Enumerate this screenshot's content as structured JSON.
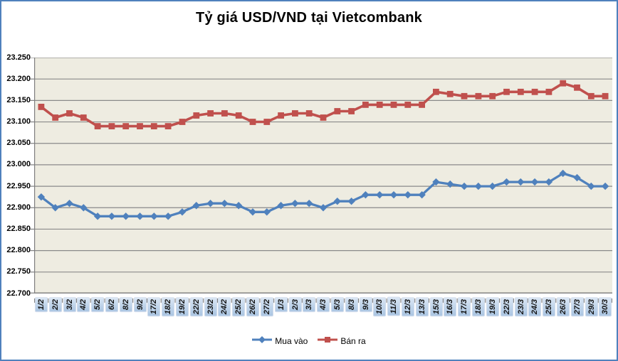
{
  "title": "Tỷ giá USD/VND tại Vietcombank",
  "chart_data": {
    "type": "line",
    "title": "Tỷ giá USD/VND tại Vietcombank",
    "xlabel": "",
    "ylabel": "",
    "categories": [
      "1/2",
      "2/2",
      "3/2",
      "4/2",
      "5/2",
      "6/2",
      "8/2",
      "9/2",
      "17/2",
      "18/2",
      "19/2",
      "22/2",
      "23/2",
      "24/2",
      "25/2",
      "26/2",
      "27/2",
      "1/3",
      "2/3",
      "3/3",
      "4/3",
      "5/3",
      "8/3",
      "9/3",
      "10/3",
      "11/3",
      "12/3",
      "13/3",
      "15/3",
      "16/3",
      "17/3",
      "18/3",
      "19/3",
      "22/3",
      "23/3",
      "24/3",
      "25/3",
      "26/3",
      "27/3",
      "29/3",
      "30/3"
    ],
    "series": [
      {
        "name": "Mua vào",
        "marker": "diamond",
        "color": "#4f81bd",
        "values": [
          22925,
          22900,
          22910,
          22900,
          22880,
          22880,
          22880,
          22880,
          22880,
          22880,
          22890,
          22905,
          22910,
          22910,
          22905,
          22890,
          22890,
          22905,
          22910,
          22910,
          22900,
          22915,
          22915,
          22930,
          22930,
          22930,
          22930,
          22930,
          22960,
          22955,
          22950,
          22950,
          22950,
          22960,
          22960,
          22960,
          22960,
          22980,
          22970,
          22950,
          22950
        ]
      },
      {
        "name": "Bán ra",
        "marker": "square",
        "color": "#c0504d",
        "values": [
          23135,
          23110,
          23120,
          23110,
          23090,
          23090,
          23090,
          23090,
          23090,
          23090,
          23100,
          23115,
          23120,
          23120,
          23115,
          23100,
          23100,
          23115,
          23120,
          23120,
          23110,
          23125,
          23125,
          23140,
          23140,
          23140,
          23140,
          23140,
          23170,
          23165,
          23160,
          23160,
          23160,
          23170,
          23170,
          23170,
          23170,
          23190,
          23180,
          23160,
          23160
        ]
      }
    ],
    "ylim": [
      22700,
      23250
    ],
    "y_tick_step": 50,
    "y_tick_labels": [
      "23.250",
      "23.200",
      "23.150",
      "23.100",
      "23.050",
      "23.000",
      "22.950",
      "22.900",
      "22.850",
      "22.800",
      "22.750",
      "22.700"
    ],
    "grid": true,
    "legend_position": "bottom",
    "plot_background": "#eeece1",
    "gridline_color": "#8a8a8a",
    "axis_color": "#7f7f7f",
    "frame_border_color": "#4f81bd"
  }
}
